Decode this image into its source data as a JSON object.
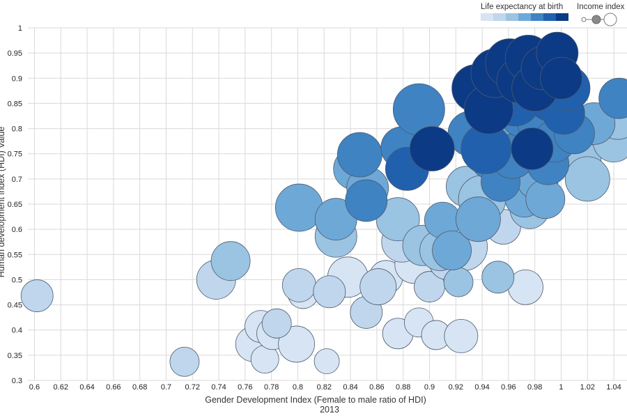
{
  "chart_data": {
    "type": "scatter",
    "xlabel": "Gender Development Index (Female to male ratio of HDI)",
    "xsublabel": "2013",
    "ylabel": "Human development index (HDI) Value",
    "xlim": [
      0.595,
      1.05
    ],
    "ylim": [
      0.3,
      1.0
    ],
    "x_ticks": [
      0.6,
      0.62,
      0.64,
      0.66,
      0.68,
      0.7,
      0.72,
      0.74,
      0.76,
      0.78,
      0.8,
      0.82,
      0.84,
      0.86,
      0.88,
      0.9,
      0.92,
      0.94,
      0.96,
      0.98,
      1,
      1.02,
      1.04
    ],
    "y_ticks": [
      0.3,
      0.35,
      0.4,
      0.45,
      0.5,
      0.55,
      0.6,
      0.65,
      0.7,
      0.75,
      0.8,
      0.85,
      0.9,
      0.95,
      1
    ],
    "grid": true,
    "legend": {
      "placement": "top-right",
      "color_title": "Life expectancy at birth",
      "color_scale": [
        "#d6e4f3",
        "#c0d6ec",
        "#9bc3e2",
        "#6ea8d6",
        "#3f83c2",
        "#2160ad",
        "#0d3a85"
      ],
      "size_title": "Income index"
    },
    "points": [
      {
        "x": 0.602,
        "y": 0.468,
        "r": 23,
        "c": 1
      },
      {
        "x": 0.714,
        "y": 0.337,
        "r": 21,
        "c": 1
      },
      {
        "x": 0.738,
        "y": 0.5,
        "r": 28,
        "c": 1
      },
      {
        "x": 0.749,
        "y": 0.537,
        "r": 28,
        "c": 2
      },
      {
        "x": 0.766,
        "y": 0.372,
        "r": 25,
        "c": 0
      },
      {
        "x": 0.772,
        "y": 0.407,
        "r": 23,
        "c": 0
      },
      {
        "x": 0.775,
        "y": 0.342,
        "r": 20,
        "c": 0
      },
      {
        "x": 0.781,
        "y": 0.393,
        "r": 23,
        "c": 0
      },
      {
        "x": 0.784,
        "y": 0.413,
        "r": 21,
        "c": 1
      },
      {
        "x": 0.799,
        "y": 0.372,
        "r": 26,
        "c": 0
      },
      {
        "x": 0.801,
        "y": 0.489,
        "r": 24,
        "c": 1
      },
      {
        "x": 0.801,
        "y": 0.643,
        "r": 34,
        "c": 3
      },
      {
        "x": 0.804,
        "y": 0.473,
        "r": 22,
        "c": 0
      },
      {
        "x": 0.822,
        "y": 0.338,
        "r": 18,
        "c": 0
      },
      {
        "x": 0.824,
        "y": 0.476,
        "r": 23,
        "c": 1
      },
      {
        "x": 0.829,
        "y": 0.62,
        "r": 30,
        "c": 3
      },
      {
        "x": 0.829,
        "y": 0.586,
        "r": 30,
        "c": 2
      },
      {
        "x": 0.838,
        "y": 0.505,
        "r": 29,
        "c": 0
      },
      {
        "x": 0.843,
        "y": 0.72,
        "r": 30,
        "c": 3
      },
      {
        "x": 0.847,
        "y": 0.748,
        "r": 32,
        "c": 4
      },
      {
        "x": 0.852,
        "y": 0.435,
        "r": 23,
        "c": 1
      },
      {
        "x": 0.853,
        "y": 0.682,
        "r": 30,
        "c": 3
      },
      {
        "x": 0.852,
        "y": 0.657,
        "r": 30,
        "c": 4
      },
      {
        "x": 0.861,
        "y": 0.486,
        "r": 26,
        "c": 1
      },
      {
        "x": 0.867,
        "y": 0.505,
        "r": 24,
        "c": 0
      },
      {
        "x": 0.876,
        "y": 0.62,
        "r": 31,
        "c": 2
      },
      {
        "x": 0.876,
        "y": 0.393,
        "r": 22,
        "c": 0
      },
      {
        "x": 0.879,
        "y": 0.575,
        "r": 29,
        "c": 1
      },
      {
        "x": 0.879,
        "y": 0.762,
        "r": 30,
        "c": 4
      },
      {
        "x": 0.883,
        "y": 0.72,
        "r": 31,
        "c": 5
      },
      {
        "x": 0.888,
        "y": 0.53,
        "r": 27,
        "c": 0
      },
      {
        "x": 0.892,
        "y": 0.838,
        "r": 37,
        "c": 4
      },
      {
        "x": 0.892,
        "y": 0.415,
        "r": 21,
        "c": 0
      },
      {
        "x": 0.895,
        "y": 0.568,
        "r": 29,
        "c": 2
      },
      {
        "x": 0.9,
        "y": 0.486,
        "r": 22,
        "c": 1
      },
      {
        "x": 0.902,
        "y": 0.76,
        "r": 32,
        "c": 6
      },
      {
        "x": 0.905,
        "y": 0.39,
        "r": 21,
        "c": 0
      },
      {
        "x": 0.908,
        "y": 0.558,
        "r": 29,
        "c": 2
      },
      {
        "x": 0.91,
        "y": 0.618,
        "r": 26,
        "c": 3
      },
      {
        "x": 0.913,
        "y": 0.535,
        "r": 25,
        "c": 1
      },
      {
        "x": 0.917,
        "y": 0.558,
        "r": 28,
        "c": 3
      },
      {
        "x": 0.922,
        "y": 0.495,
        "r": 21,
        "c": 2
      },
      {
        "x": 0.924,
        "y": 0.388,
        "r": 24,
        "c": 0
      },
      {
        "x": 0.926,
        "y": 0.565,
        "r": 34,
        "c": 1
      },
      {
        "x": 0.928,
        "y": 0.685,
        "r": 29,
        "c": 2
      },
      {
        "x": 0.931,
        "y": 0.79,
        "r": 32,
        "c": 4
      },
      {
        "x": 0.935,
        "y": 0.88,
        "r": 34,
        "c": 6
      },
      {
        "x": 0.937,
        "y": 0.62,
        "r": 32,
        "c": 3
      },
      {
        "x": 0.94,
        "y": 0.66,
        "r": 34,
        "c": 2
      },
      {
        "x": 0.943,
        "y": 0.76,
        "r": 36,
        "c": 5
      },
      {
        "x": 0.945,
        "y": 0.838,
        "r": 35,
        "c": 6
      },
      {
        "x": 0.947,
        "y": 0.74,
        "r": 30,
        "c": 4
      },
      {
        "x": 0.95,
        "y": 0.91,
        "r": 35,
        "c": 6
      },
      {
        "x": 0.952,
        "y": 0.505,
        "r": 23,
        "c": 2
      },
      {
        "x": 0.954,
        "y": 0.694,
        "r": 28,
        "c": 4
      },
      {
        "x": 0.956,
        "y": 0.605,
        "r": 25,
        "c": 1
      },
      {
        "x": 0.958,
        "y": 0.78,
        "r": 30,
        "c": 3
      },
      {
        "x": 0.961,
        "y": 0.93,
        "r": 35,
        "c": 6
      },
      {
        "x": 0.963,
        "y": 0.745,
        "r": 32,
        "c": 4
      },
      {
        "x": 0.965,
        "y": 0.855,
        "r": 36,
        "c": 5
      },
      {
        "x": 0.967,
        "y": 0.72,
        "r": 29,
        "c": 3
      },
      {
        "x": 0.968,
        "y": 0.895,
        "r": 32,
        "c": 6
      },
      {
        "x": 0.97,
        "y": 0.825,
        "r": 30,
        "c": 4
      },
      {
        "x": 0.972,
        "y": 0.663,
        "r": 28,
        "c": 3
      },
      {
        "x": 0.973,
        "y": 0.485,
        "r": 25,
        "c": 0
      },
      {
        "x": 0.975,
        "y": 0.94,
        "r": 33,
        "c": 6
      },
      {
        "x": 0.976,
        "y": 0.64,
        "r": 28,
        "c": 2
      },
      {
        "x": 0.978,
        "y": 0.76,
        "r": 30,
        "c": 6
      },
      {
        "x": 0.98,
        "y": 0.88,
        "r": 33,
        "c": 6
      },
      {
        "x": 0.982,
        "y": 0.7,
        "r": 30,
        "c": 3
      },
      {
        "x": 0.984,
        "y": 0.81,
        "r": 32,
        "c": 4
      },
      {
        "x": 0.986,
        "y": 0.92,
        "r": 31,
        "c": 6
      },
      {
        "x": 0.988,
        "y": 0.66,
        "r": 28,
        "c": 3
      },
      {
        "x": 0.99,
        "y": 0.73,
        "r": 30,
        "c": 4
      },
      {
        "x": 0.992,
        "y": 0.86,
        "r": 33,
        "c": 5
      },
      {
        "x": 0.995,
        "y": 0.775,
        "r": 30,
        "c": 4
      },
      {
        "x": 0.997,
        "y": 0.95,
        "r": 30,
        "c": 6
      },
      {
        "x": 1.0,
        "y": 0.9,
        "r": 30,
        "c": 6
      },
      {
        "x": 1.002,
        "y": 0.83,
        "r": 30,
        "c": 5
      },
      {
        "x": 1.005,
        "y": 0.88,
        "r": 32,
        "c": 5
      },
      {
        "x": 1.01,
        "y": 0.79,
        "r": 29,
        "c": 4
      },
      {
        "x": 1.015,
        "y": 0.735,
        "r": 29,
        "c": 2
      },
      {
        "x": 1.02,
        "y": 0.7,
        "r": 32,
        "c": 2
      },
      {
        "x": 1.025,
        "y": 0.81,
        "r": 30,
        "c": 3
      },
      {
        "x": 1.04,
        "y": 0.775,
        "r": 30,
        "c": 2
      },
      {
        "x": 1.043,
        "y": 0.82,
        "r": 30,
        "c": 2
      },
      {
        "x": 1.044,
        "y": 0.86,
        "r": 29,
        "c": 4
      }
    ]
  }
}
